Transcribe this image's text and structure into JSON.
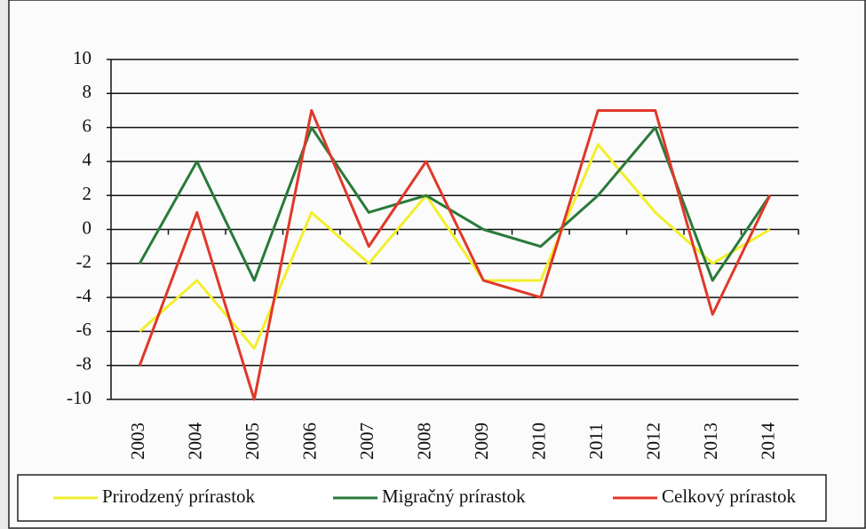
{
  "chart_data": {
    "type": "line",
    "categories": [
      "2003",
      "2004",
      "2005",
      "2006",
      "2007",
      "2008",
      "2009",
      "2010",
      "2011",
      "2012",
      "2013",
      "2014"
    ],
    "series": [
      {
        "name": "Prirodzený prírastok",
        "color": "#f2ef2a",
        "values": [
          -6,
          -3,
          -7,
          1,
          -2,
          2,
          -3,
          -3,
          5,
          1,
          -2,
          0
        ]
      },
      {
        "name": "Migračný prírastok",
        "color": "#2a7a3a",
        "values": [
          -2,
          4,
          -3,
          6,
          1,
          2,
          0,
          -1,
          2,
          6,
          -3,
          2
        ]
      },
      {
        "name": "Celkový prírastok",
        "color": "#e0382a",
        "values": [
          -8,
          1,
          -10,
          7,
          -1,
          4,
          -3,
          -4,
          7,
          7,
          -5,
          2
        ]
      }
    ],
    "ylim": [
      -10,
      10
    ],
    "yticks": [
      -10,
      -8,
      -6,
      -4,
      -2,
      0,
      2,
      4,
      6,
      8,
      10
    ],
    "grid": true,
    "legend": "bottom"
  }
}
